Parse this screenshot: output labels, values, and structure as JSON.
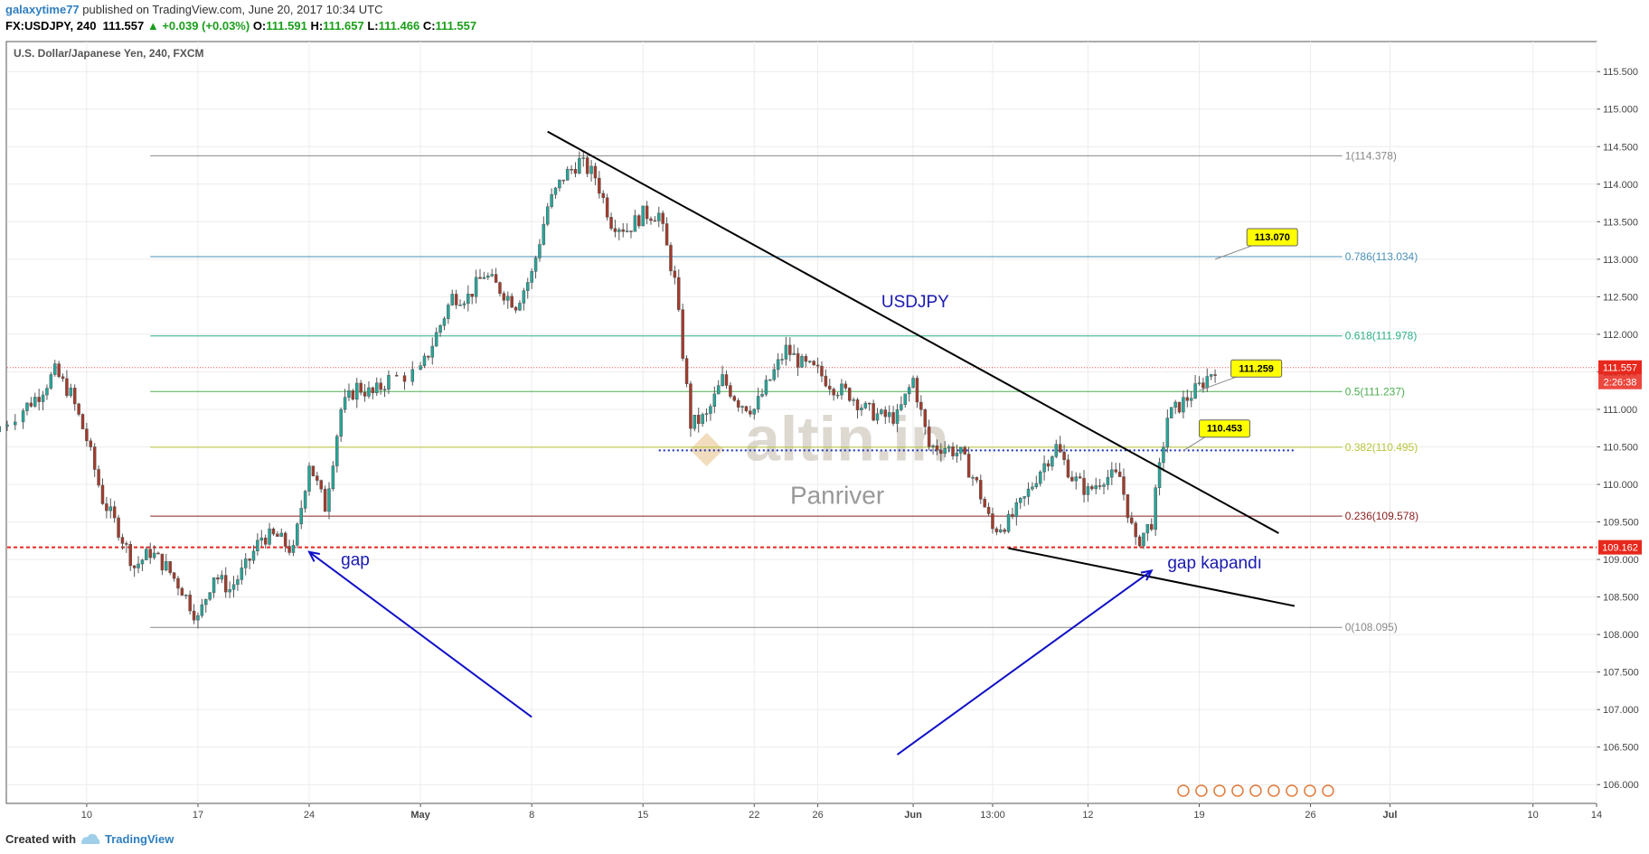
{
  "header": {
    "username": "galaxytime77",
    "published_text": "published on TradingView.com, June 20, 2017 10:34 UTC",
    "symbol": "FX:USDJPY, 240",
    "price": "111.557",
    "change": "▲ +0.039 (+0.03%)",
    "o_label": "O:",
    "o_value": "111.591",
    "h_label": "H:",
    "h_value": "111.657",
    "l_label": "L:",
    "l_value": "111.466",
    "c_label": "C:",
    "c_value": "111.557"
  },
  "chart_title": "U.S. Dollar/Japanese Yen, 240, FXCM",
  "watermark": {
    "logo": "altin.in",
    "sub": "Panriver"
  },
  "annotations": {
    "usdjpy": "USDJPY",
    "gap": "gap",
    "gap_closed": "gap kapandı",
    "callouts": [
      "113.070",
      "111.259",
      "110.453"
    ]
  },
  "price_tags": {
    "current": "111.557",
    "countdown": "2:26:38",
    "line": "109.162"
  },
  "footer": {
    "created": "Created with",
    "brand": "TradingView"
  },
  "colors": {
    "up": "#26a69a",
    "down": "#a33a2a",
    "trendline": "#000000",
    "arrow": "#1010c8",
    "red_line": "#e8281d",
    "callout_bg": "#ffff00",
    "fib_0786": "#4a90b8",
    "fib_0618": "#2cb08a",
    "fib_05": "#4caf50",
    "fib_0382": "#b8c53a",
    "fib_0236": "#8b2020"
  },
  "chart_data": {
    "type": "candlestick",
    "symbol": "USDJPY",
    "timeframe": "240",
    "x_tick_labels": [
      "10",
      "17",
      "24",
      "May",
      "8",
      "15",
      "22",
      "26",
      "Jun",
      "13:00",
      "12",
      "19",
      "26",
      "Jul",
      "10",
      "14"
    ],
    "y_tick_labels": [
      "106.000",
      "106.500",
      "107.000",
      "107.500",
      "108.000",
      "108.500",
      "109.000",
      "109.500",
      "110.000",
      "110.500",
      "111.000",
      "111.500",
      "112.000",
      "112.500",
      "113.000",
      "113.500",
      "114.000",
      "114.500",
      "115.000",
      "115.500"
    ],
    "ylim": [
      105.75,
      115.9
    ],
    "fib_levels": [
      {
        "label": "1(114.378)",
        "value": 114.378
      },
      {
        "label": "0.786(113.034)",
        "value": 113.034
      },
      {
        "label": "0.618(111.978)",
        "value": 111.978
      },
      {
        "label": "0.5(111.237)",
        "value": 111.237
      },
      {
        "label": "0.382(110.495)",
        "value": 110.495
      },
      {
        "label": "0.236(109.578)",
        "value": 109.578
      },
      {
        "label": "0(108.095)",
        "value": 108.095
      }
    ],
    "horizontal_line": 109.162,
    "last_price": 111.557,
    "dotted_level": 110.453,
    "price_path": [
      [
        "2017-04-04",
        110.7
      ],
      [
        "2017-04-06",
        111.0
      ],
      [
        "2017-04-07",
        111.2
      ],
      [
        "2017-04-08",
        111.5
      ],
      [
        "2017-04-09",
        111.2
      ],
      [
        "2017-04-10",
        110.6
      ],
      [
        "2017-04-11",
        109.8
      ],
      [
        "2017-04-12",
        109.4
      ],
      [
        "2017-04-13",
        108.9
      ],
      [
        "2017-04-14",
        109.1
      ],
      [
        "2017-04-15",
        108.9
      ],
      [
        "2017-04-16",
        108.6
      ],
      [
        "2017-04-17",
        108.2
      ],
      [
        "2017-04-18",
        108.8
      ],
      [
        "2017-04-19",
        108.6
      ],
      [
        "2017-04-20",
        108.9
      ],
      [
        "2017-04-21",
        109.3
      ],
      [
        "2017-04-22",
        109.3
      ],
      [
        "2017-04-23",
        109.1
      ],
      [
        "2017-04-24",
        110.3
      ],
      [
        "2017-04-25",
        109.7
      ],
      [
        "2017-04-26",
        111.0
      ],
      [
        "2017-04-27",
        111.3
      ],
      [
        "2017-04-28",
        111.2
      ],
      [
        "2017-04-29",
        111.4
      ],
      [
        "2017-05-01",
        111.5
      ],
      [
        "2017-05-02",
        112.0
      ],
      [
        "2017-05-03",
        112.5
      ],
      [
        "2017-05-04",
        112.5
      ],
      [
        "2017-05-05",
        112.8
      ],
      [
        "2017-05-06",
        112.6
      ],
      [
        "2017-05-07",
        112.4
      ],
      [
        "2017-05-08",
        112.8
      ],
      [
        "2017-05-09",
        113.7
      ],
      [
        "2017-05-10",
        114.1
      ],
      [
        "2017-05-11",
        114.3
      ],
      [
        "2017-05-12",
        114.1
      ],
      [
        "2017-05-13",
        113.5
      ],
      [
        "2017-05-14",
        113.4
      ],
      [
        "2017-05-15",
        113.6
      ],
      [
        "2017-05-16",
        113.6
      ],
      [
        "2017-05-17",
        112.7
      ],
      [
        "2017-05-18",
        110.8
      ],
      [
        "2017-05-19",
        110.9
      ],
      [
        "2017-05-20",
        111.4
      ],
      [
        "2017-05-21",
        111.1
      ],
      [
        "2017-05-22",
        111.0
      ],
      [
        "2017-05-23",
        111.4
      ],
      [
        "2017-05-24",
        111.8
      ],
      [
        "2017-05-25",
        111.6
      ],
      [
        "2017-05-26",
        111.5
      ],
      [
        "2017-05-27",
        111.3
      ],
      [
        "2017-05-28",
        111.2
      ],
      [
        "2017-05-29",
        111.0
      ],
      [
        "2017-05-30",
        110.9
      ],
      [
        "2017-05-31",
        110.9
      ],
      [
        "2017-06-01",
        111.4
      ],
      [
        "2017-06-02",
        110.5
      ],
      [
        "2017-06-03",
        110.5
      ],
      [
        "2017-06-04",
        110.4
      ],
      [
        "2017-06-05",
        110.0
      ],
      [
        "2017-06-06",
        109.4
      ],
      [
        "2017-06-07",
        109.5
      ],
      [
        "2017-06-08",
        109.8
      ],
      [
        "2017-06-09",
        110.2
      ],
      [
        "2017-06-10",
        110.5
      ],
      [
        "2017-06-11",
        110.1
      ],
      [
        "2017-06-12",
        109.9
      ],
      [
        "2017-06-13",
        110.1
      ],
      [
        "2017-06-14",
        110.1
      ],
      [
        "2017-06-15",
        109.2
      ],
      [
        "2017-06-16",
        109.5
      ],
      [
        "2017-06-17",
        110.9
      ],
      [
        "2017-06-18",
        111.1
      ],
      [
        "2017-06-19",
        111.3
      ],
      [
        "2017-06-20",
        111.557
      ]
    ],
    "visible_range": [
      "2017-04-05",
      "2017-07-14"
    ],
    "trendlines": [
      {
        "from": [
          "2017-05-09",
          114.7
        ],
        "to": [
          "2017-06-24",
          109.35
        ]
      },
      {
        "from": [
          "2017-06-07",
          109.15
        ],
        "to": [
          "2017-06-25",
          108.38
        ]
      }
    ],
    "arrows": [
      {
        "from": [
          "2017-05-08",
          106.9
        ],
        "to": [
          "2017-04-24",
          109.1
        ]
      },
      {
        "from": [
          "2017-05-31",
          106.4
        ],
        "to": [
          "2017-06-16",
          108.85
        ]
      }
    ]
  }
}
